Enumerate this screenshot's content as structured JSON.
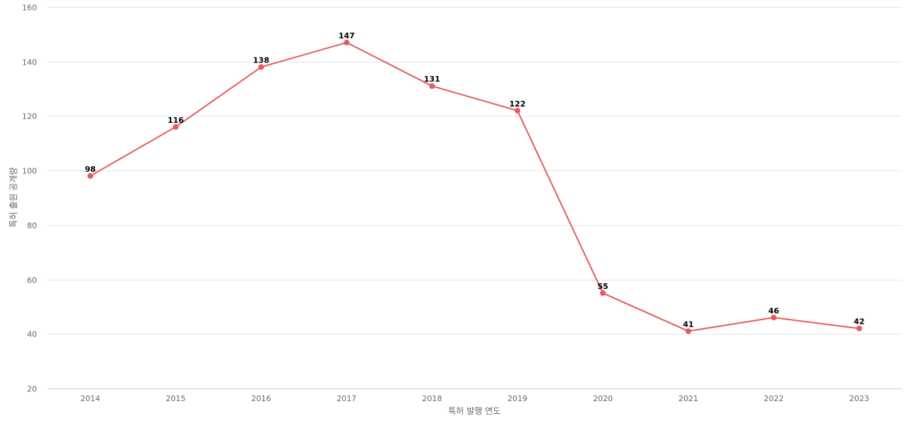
{
  "chart_data": {
    "type": "line",
    "title": "",
    "xlabel": "특허 발행 연도",
    "ylabel": "특허 출원 공개량",
    "categories": [
      "2014",
      "2015",
      "2016",
      "2017",
      "2018",
      "2019",
      "2020",
      "2021",
      "2022",
      "2023"
    ],
    "series": [
      {
        "values": [
          98,
          116,
          138,
          147,
          131,
          122,
          55,
          41,
          46,
          42
        ],
        "color": "#e85a5a"
      }
    ],
    "ylim": [
      20,
      160
    ],
    "yticks": [
      20,
      40,
      60,
      80,
      100,
      120,
      140,
      160
    ],
    "grid": true,
    "data_labels": true,
    "legend": "none"
  }
}
